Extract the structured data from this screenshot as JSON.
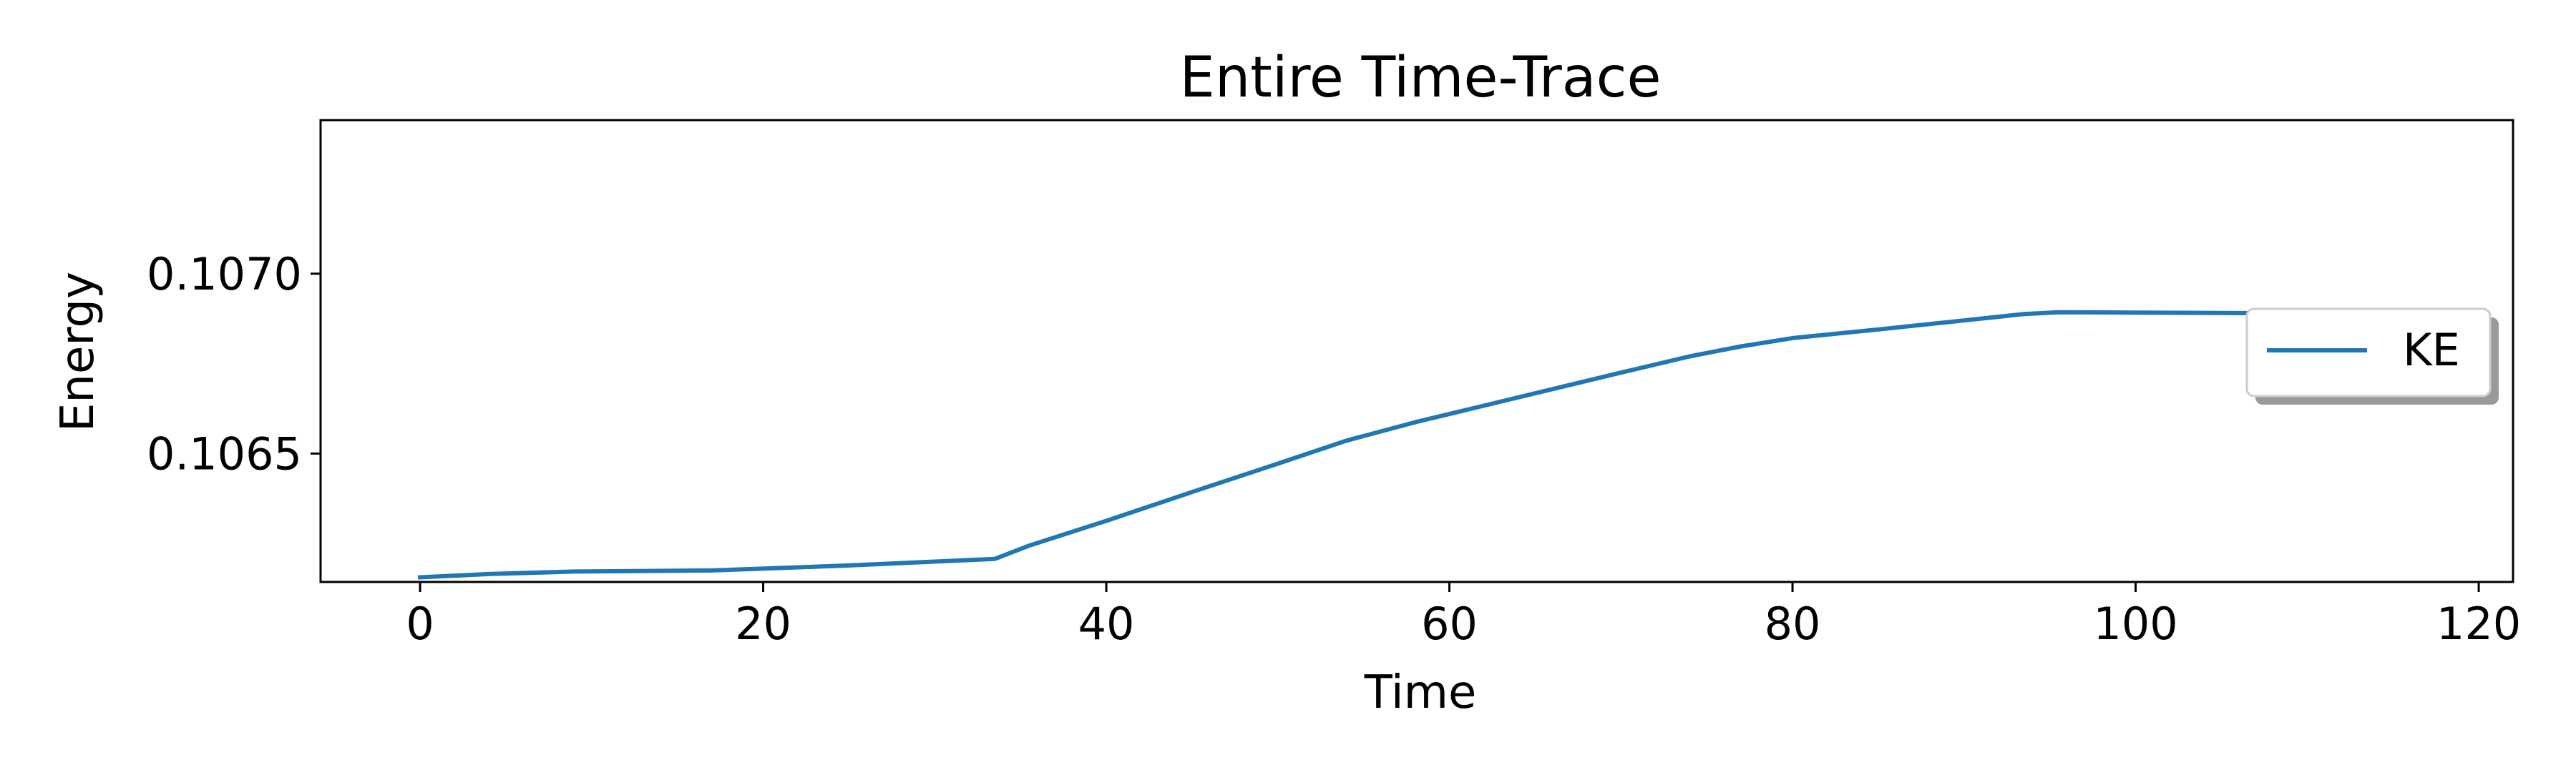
{
  "chart_data": {
    "type": "line",
    "title": "Entire Time-Trace",
    "xlabel": "Time",
    "ylabel": "Energy",
    "xlim": [
      -5.8,
      122.0
    ],
    "ylim": [
      0.106143,
      0.107427
    ],
    "xticks": [
      0,
      20,
      40,
      60,
      80,
      100,
      120
    ],
    "xtick_labels": [
      "0",
      "20",
      "40",
      "60",
      "80",
      "100",
      "120"
    ],
    "yticks": [
      0.1065,
      0.107
    ],
    "ytick_labels": [
      "0.1065",
      "0.1070"
    ],
    "grid": false,
    "legend_position": "center-right",
    "series": [
      {
        "name": "KE",
        "color": "#1f77b4",
        "x": [
          0,
          4,
          9,
          17,
          25,
          33.5,
          35.5,
          40,
          45,
          50,
          54,
          58,
          62,
          66,
          70,
          74,
          77,
          80,
          85,
          90,
          93.5,
          95.5,
          100,
          105,
          111.5,
          116
        ],
        "y": [
          0.106156,
          0.106165,
          0.106172,
          0.106175,
          0.106189,
          0.106207,
          0.106244,
          0.106313,
          0.106393,
          0.106472,
          0.106536,
          0.106587,
          0.106633,
          0.106679,
          0.106725,
          0.10677,
          0.106798,
          0.106821,
          0.106845,
          0.10687,
          0.106888,
          0.106893,
          0.106892,
          0.106891,
          0.106889,
          0.106863
        ]
      }
    ]
  }
}
